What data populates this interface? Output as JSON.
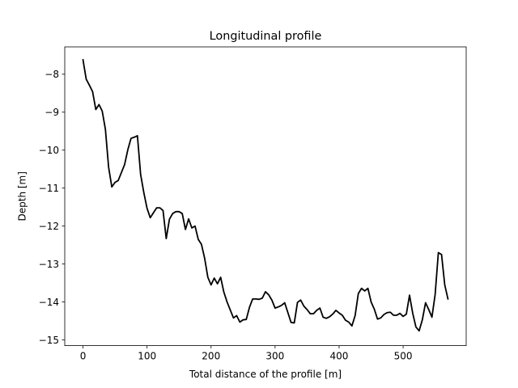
{
  "chart_data": {
    "type": "line",
    "title": "Longitudinal profile",
    "xlabel": "Total distance of the profile [m]",
    "ylabel": "Depth [m]",
    "xlim": [
      -28.5,
      598.5
    ],
    "ylim": [
      -15.15,
      -7.28
    ],
    "xticks": [
      0,
      100,
      200,
      300,
      400,
      500
    ],
    "yticks": [
      -15,
      -14,
      -13,
      -12,
      -11,
      -10,
      -9,
      -8
    ],
    "xtick_labels": [
      "0",
      "100",
      "200",
      "300",
      "400",
      "500"
    ],
    "ytick_labels": [
      "−15",
      "−14",
      "−13",
      "−12",
      "−11",
      "−10",
      "−9",
      "−8"
    ],
    "grid": false,
    "line_color": "#000000",
    "series": [
      {
        "x": [
          0,
          5,
          10,
          15,
          20,
          25,
          30,
          35,
          40,
          45,
          50,
          55,
          60,
          65,
          70,
          75,
          80,
          85,
          90,
          95,
          100,
          105,
          110,
          115,
          120,
          125,
          130,
          135,
          140,
          145,
          150,
          155,
          160,
          165,
          170,
          175,
          180,
          185,
          190,
          195,
          200,
          205,
          210,
          215,
          220,
          225,
          230,
          235,
          240,
          245,
          250,
          255,
          260,
          265,
          270,
          275,
          280,
          285,
          290,
          295,
          300,
          305,
          310,
          315,
          320,
          325,
          330,
          335,
          340,
          345,
          350,
          355,
          360,
          365,
          370,
          375,
          380,
          385,
          390,
          395,
          400,
          405,
          410,
          415,
          420,
          425,
          430,
          435,
          440,
          445,
          450,
          455,
          460,
          465,
          470,
          475,
          480,
          485,
          490,
          495,
          500,
          505,
          510,
          515,
          520,
          525,
          530,
          535,
          540,
          545,
          550,
          555,
          560,
          565,
          570
        ],
        "y": [
          -7.62,
          -8.13,
          -8.29,
          -8.46,
          -8.93,
          -8.8,
          -8.97,
          -9.45,
          -10.45,
          -10.97,
          -10.85,
          -10.8,
          -10.59,
          -10.38,
          -9.99,
          -9.69,
          -9.66,
          -9.62,
          -10.64,
          -11.12,
          -11.53,
          -11.78,
          -11.65,
          -11.52,
          -11.52,
          -11.59,
          -12.33,
          -11.82,
          -11.67,
          -11.62,
          -11.62,
          -11.67,
          -12.09,
          -11.81,
          -12.05,
          -12.0,
          -12.35,
          -12.48,
          -12.85,
          -13.35,
          -13.55,
          -13.37,
          -13.52,
          -13.35,
          -13.74,
          -14.0,
          -14.21,
          -14.42,
          -14.36,
          -14.53,
          -14.47,
          -14.46,
          -14.14,
          -13.92,
          -13.92,
          -13.93,
          -13.9,
          -13.73,
          -13.81,
          -13.95,
          -14.16,
          -14.13,
          -14.09,
          -14.02,
          -14.28,
          -14.54,
          -14.55,
          -14.01,
          -13.95,
          -14.11,
          -14.2,
          -14.31,
          -14.31,
          -14.22,
          -14.16,
          -14.4,
          -14.43,
          -14.39,
          -14.32,
          -14.22,
          -14.29,
          -14.35,
          -14.48,
          -14.53,
          -14.63,
          -14.36,
          -13.78,
          -13.64,
          -13.71,
          -13.64,
          -14.0,
          -14.19,
          -14.45,
          -14.42,
          -14.33,
          -14.28,
          -14.27,
          -14.35,
          -14.35,
          -14.3,
          -14.38,
          -14.32,
          -13.82,
          -14.3,
          -14.66,
          -14.76,
          -14.47,
          -14.02,
          -14.2,
          -14.4,
          -13.8,
          -12.7,
          -12.75,
          -13.55,
          -13.92
        ]
      }
    ]
  }
}
